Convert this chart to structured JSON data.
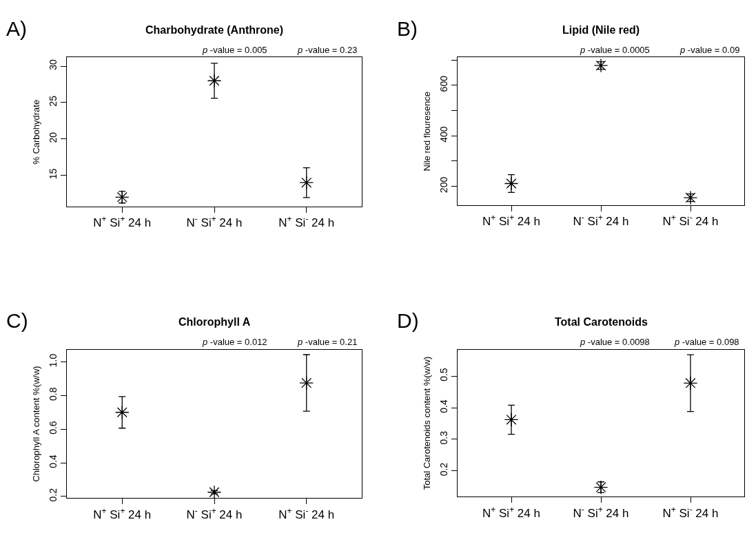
{
  "chart_data": [
    {
      "type": "scatter",
      "title": "Charbohydrate (Anthrone)",
      "ylabel": "% Carbohydrate",
      "categories": [
        "N$^{+}$ Si$^{+}$ 24 h",
        "N$^{-}$ Si$^{+}$ 24 h",
        "N$^{+}$ Si$^{-}$ 24 h"
      ],
      "values": [
        12.0,
        28.0,
        14.0
      ],
      "errors": [
        0.8,
        2.4,
        2.05
      ],
      "color": "#000000",
      "marker": "cross",
      "ylim": [
        10.7,
        31.2
      ],
      "yticks": [
        15,
        20,
        25,
        30
      ],
      "annotations": [
        "A)",
        "p -value = 0.005",
        "p -value = 0.23"
      ]
    },
    {
      "type": "scatter",
      "title": "Lipid (Nile red)",
      "ylabel": "Nile red flouresence",
      "categories": [
        "N$^{+}$ Si$^{+}$ 24 h",
        "N$^{-}$ Si$^{+}$ 24 h",
        "N$^{+}$ Si$^{-}$ 24 h"
      ],
      "values": [
        211,
        678,
        155
      ],
      "errors": [
        35,
        15,
        15
      ],
      "color": "#000000",
      "marker": "cross",
      "ylim": [
        125,
        710
      ],
      "yticks": [
        200,
        {
          "value": 300,
          "label": null
        },
        400,
        {
          "value": 500,
          "label": null
        },
        600,
        {
          "value": 700,
          "label": null
        }
      ],
      "annotations": [
        "B)",
        "p -value = 0.0005",
        "p -value = 0.09"
      ]
    },
    {
      "type": "scatter",
      "title": "Chlorophyll A",
      "ylabel": "Chlorophyll A content %(w/w)",
      "categories": [
        "N$^{+}$ Si$^{+}$ 24 h",
        "N$^{-}$ Si$^{+}$ 24 h",
        "N$^{+}$ Si$^{-}$ 24 h"
      ],
      "values": [
        0.7,
        0.225,
        0.875
      ],
      "errors": [
        0.094,
        0.01,
        0.168
      ],
      "color": "#000000",
      "marker": "cross",
      "ylim": [
        0.19,
        1.073
      ],
      "yticks": [
        {
          "value": 0.2,
          "label": "0.2"
        },
        {
          "value": 0.4,
          "label": "0.4"
        },
        {
          "value": 0.6,
          "label": "0.6"
        },
        {
          "value": 0.8,
          "label": "0.8"
        },
        {
          "value": 1.0,
          "label": "1.0"
        }
      ],
      "annotations": [
        "C)",
        "p -value = 0.012",
        "p -value = 0.21"
      ]
    },
    {
      "type": "scatter",
      "title": "Total Carotenoids",
      "ylabel": "Total Carotenoids content %(w/w)",
      "categories": [
        "N$^{+}$ Si$^{+}$ 24 h",
        "N$^{-}$ Si$^{+}$ 24 h",
        "N$^{+}$ Si$^{-}$ 24 h"
      ],
      "values": [
        0.362,
        0.148,
        0.478
      ],
      "errors": [
        0.046,
        0.017,
        0.09
      ],
      "color": "#000000",
      "marker": "cross",
      "ylim": [
        0.118,
        0.584
      ],
      "yticks": [
        0.2,
        0.3,
        0.4,
        0.5
      ],
      "annotations": [
        "D)",
        "p -value = 0.0098",
        "p -value = 0.098"
      ]
    }
  ]
}
